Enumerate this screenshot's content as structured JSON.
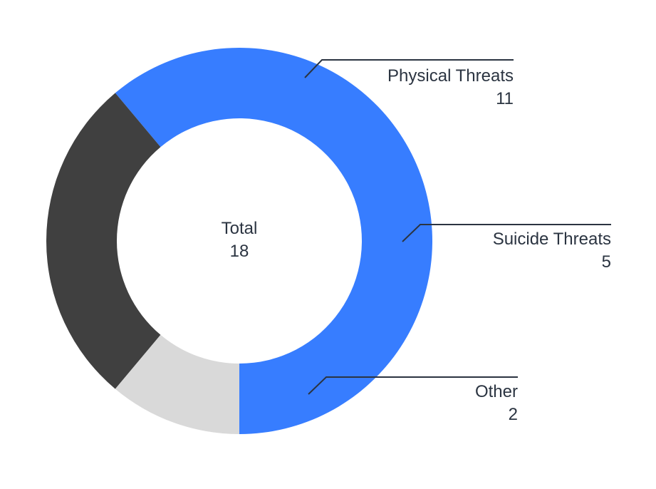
{
  "chart_data": {
    "type": "pie",
    "variant": "donut",
    "categories": [
      "Physical Threats",
      "Suicide Threats",
      "Other"
    ],
    "values": [
      11,
      5,
      2
    ],
    "colors": [
      "#377dff",
      "#404040",
      "#d9d9d9"
    ],
    "center_label": "Total",
    "total": 18,
    "legend": "callouts"
  }
}
